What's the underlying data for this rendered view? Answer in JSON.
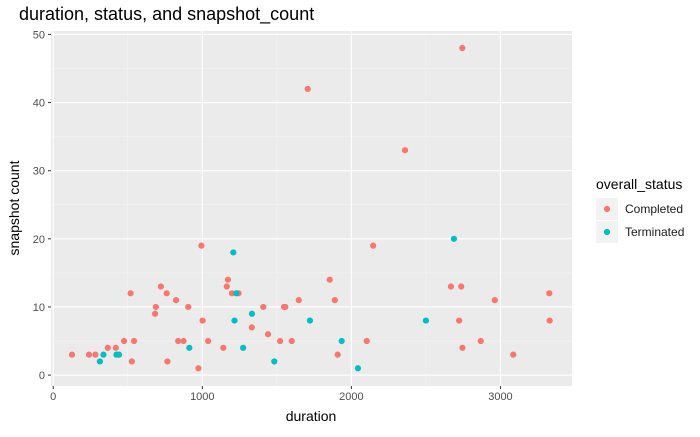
{
  "chart_data": {
    "type": "scatter",
    "title": "duration, status, and snapshot_count",
    "xlabel": "duration",
    "ylabel": "snapshot count",
    "xlim": [
      -15,
      3480
    ],
    "ylim": [
      -1.6,
      50.5
    ],
    "x_ticks": [
      0,
      1000,
      2000,
      3000
    ],
    "y_ticks": [
      0,
      10,
      20,
      30,
      40,
      50
    ],
    "grid": true,
    "legend": {
      "title": "overall_status",
      "position": "right"
    },
    "series": [
      {
        "name": "Completed",
        "color": "#F8766D",
        "points": [
          [
            126,
            3
          ],
          [
            240,
            3
          ],
          [
            283,
            3
          ],
          [
            366,
            4
          ],
          [
            420,
            4
          ],
          [
            475,
            5
          ],
          [
            519,
            12
          ],
          [
            527,
            2
          ],
          [
            542,
            5
          ],
          [
            683,
            9
          ],
          [
            688,
            10
          ],
          [
            722,
            13
          ],
          [
            761,
            12
          ],
          [
            766,
            2
          ],
          [
            824,
            11
          ],
          [
            838,
            5
          ],
          [
            874,
            5
          ],
          [
            906,
            10
          ],
          [
            974,
            1
          ],
          [
            994,
            19
          ],
          [
            1002,
            8
          ],
          [
            1039,
            5
          ],
          [
            1141,
            4
          ],
          [
            1164,
            13
          ],
          [
            1172,
            14
          ],
          [
            1199,
            12
          ],
          [
            1243,
            12
          ],
          [
            1332,
            7
          ],
          [
            1409,
            10
          ],
          [
            1441,
            6
          ],
          [
            1522,
            5
          ],
          [
            1548,
            10
          ],
          [
            1557,
            10
          ],
          [
            1600,
            5
          ],
          [
            1647,
            11
          ],
          [
            1707,
            42
          ],
          [
            1855,
            14
          ],
          [
            1889,
            11
          ],
          [
            1908,
            3
          ],
          [
            2103,
            5
          ],
          [
            2146,
            19
          ],
          [
            2360,
            33
          ],
          [
            2668,
            13
          ],
          [
            2723,
            8
          ],
          [
            2737,
            13
          ],
          [
            2744,
            48
          ],
          [
            2745,
            4
          ],
          [
            2868,
            5
          ],
          [
            2962,
            11
          ],
          [
            3086,
            3
          ],
          [
            3328,
            12
          ],
          [
            3330,
            8
          ]
        ]
      },
      {
        "name": "Terminated",
        "color": "#00BFC4",
        "points": [
          [
            313,
            2
          ],
          [
            337,
            3
          ],
          [
            424,
            3
          ],
          [
            441,
            3
          ],
          [
            913,
            4
          ],
          [
            1208,
            18
          ],
          [
            1216,
            8
          ],
          [
            1228,
            12
          ],
          [
            1274,
            4
          ],
          [
            1333,
            9
          ],
          [
            1483,
            2
          ],
          [
            1722,
            8
          ],
          [
            1935,
            5
          ],
          [
            2044,
            1
          ],
          [
            2500,
            8
          ],
          [
            2688,
            20
          ]
        ]
      }
    ]
  }
}
